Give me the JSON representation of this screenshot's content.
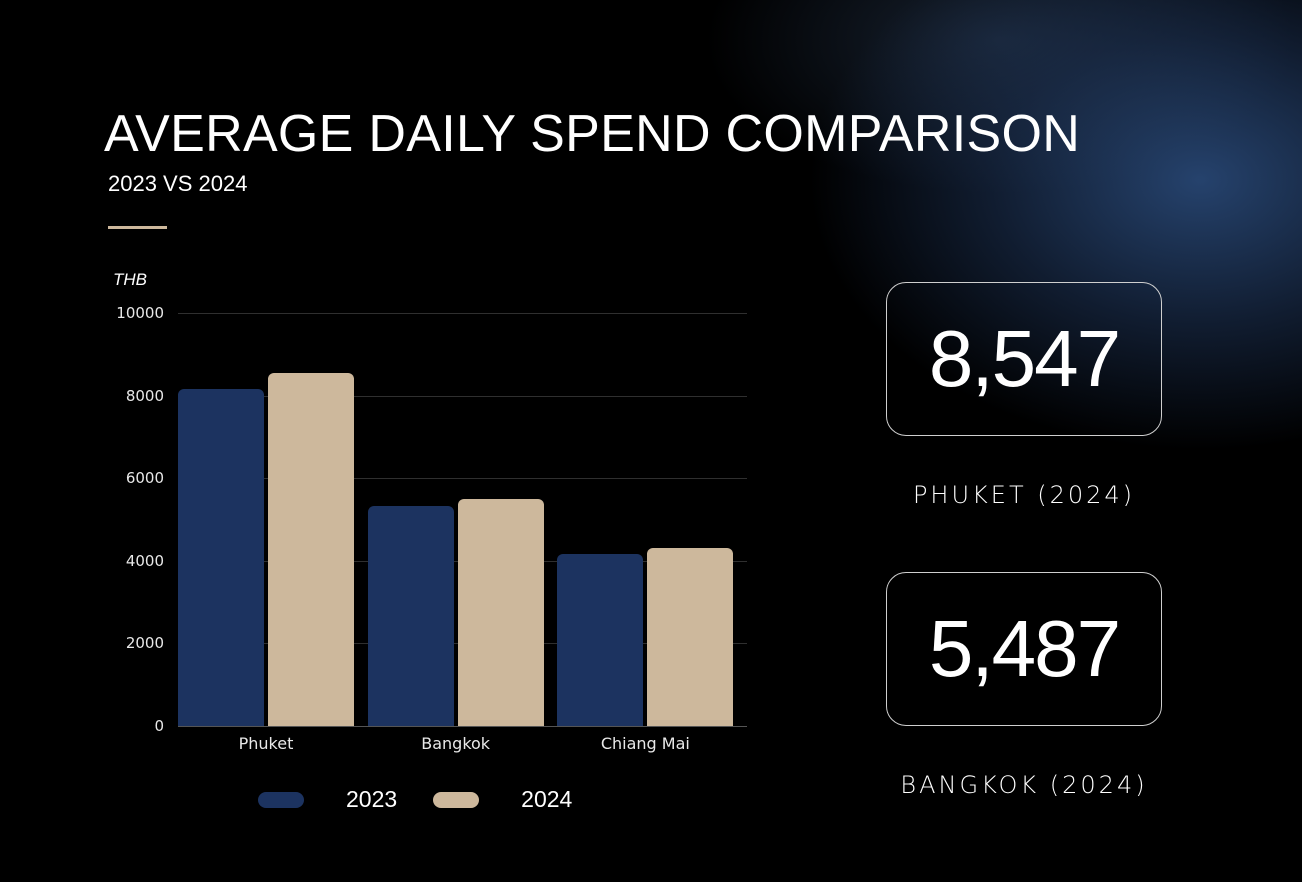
{
  "header": {
    "title": "AVERAGE DAILY SPEND COMPARISON",
    "subtitle": "2023 VS 2024"
  },
  "colors": {
    "series_2023": "#1c3360",
    "series_2024": "#cdb89c",
    "accent": "#cdb89c",
    "background": "#000000"
  },
  "chart": {
    "unit_label": "THB",
    "y_ticks": [
      "10000",
      "8000",
      "6000",
      "4000",
      "2000",
      "0"
    ],
    "categories": [
      "Phuket",
      "Bangkok",
      "Chiang Mai"
    ],
    "legend": [
      {
        "label": "2023"
      },
      {
        "label": "2024"
      }
    ]
  },
  "stats": [
    {
      "value": "8,547",
      "label": "PHUKET (2024)"
    },
    {
      "value": "5,487",
      "label": "BANGKOK (2024)"
    }
  ],
  "chart_data": {
    "type": "bar",
    "title": "AVERAGE DAILY SPEND COMPARISON",
    "subtitle": "2023 VS 2024",
    "categories": [
      "Phuket",
      "Bangkok",
      "Chiang Mai"
    ],
    "series": [
      {
        "name": "2023",
        "values": [
          8160,
          5330,
          4170
        ],
        "color": "#1c3360"
      },
      {
        "name": "2024",
        "values": [
          8547,
          5487,
          4300
        ],
        "color": "#cdb89c"
      }
    ],
    "xlabel": "",
    "ylabel": "THB",
    "ylim": [
      0,
      10000
    ],
    "y_ticks": [
      0,
      2000,
      4000,
      6000,
      8000,
      10000
    ],
    "grid": true,
    "legend_position": "bottom"
  }
}
